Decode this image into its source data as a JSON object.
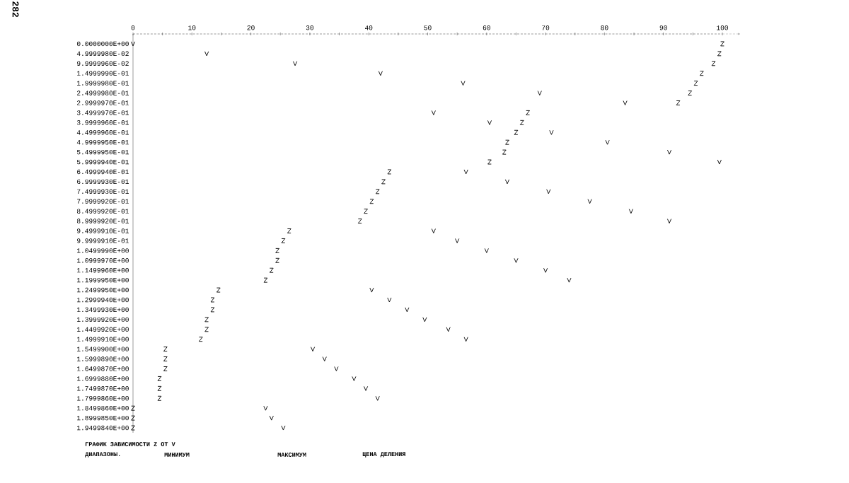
{
  "chart_data": {
    "type": "scatter",
    "orientation": "horizontal",
    "title": "ГРАФИК ЗАВИСИМОСТИ Z ОТ V",
    "annotations": [
      "282",
      "ДИАПАЗОНЫ.",
      "МИНИМУМ",
      "МАКСИМУМ",
      "ЦЕНА ДЕЛЕНИЯ"
    ],
    "categories": [
      "0.0000000E+00",
      "4.9999980E-02",
      "9.9999960E-02",
      "1.4999990E-01",
      "1.9999980E-01",
      "2.4999980E-01",
      "2.9999970E-01",
      "3.4999970E-01",
      "3.9999960E-01",
      "4.4999960E-01",
      "4.9999950E-01",
      "5.4999950E-01",
      "5.9999940E-01",
      "6.4999940E-01",
      "6.9999930E-01",
      "7.4999930E-01",
      "7.9999920E-01",
      "8.4999920E-01",
      "8.9999920E-01",
      "9.4999910E-01",
      "9.9999910E-01",
      "1.0499990E+00",
      "1.0999970E+00",
      "1.1499960E+00",
      "1.1999950E+00",
      "1.2499950E+00",
      "1.2999940E+00",
      "1.3499930E+00",
      "1.3999920E+00",
      "1.4499920E+00",
      "1.4999910E+00",
      "1.5499900E+00",
      "1.5999890E+00",
      "1.6499870E+00",
      "1.6999880E+00",
      "1.7499870E+00",
      "1.7999860E+00",
      "1.8499860E+00",
      "1.8999850E+00",
      "1.9499840E+00"
    ],
    "series": [
      {
        "color": "#000000",
        "values": [
          100,
          99.5,
          98.5,
          96.5,
          95.5,
          94.5,
          92.5,
          67,
          66,
          65,
          63.5,
          63,
          60.5,
          43.5,
          42.5,
          41.5,
          40.5,
          39.5,
          38.5,
          26.5,
          25.5,
          24.5,
          24.5,
          23.5,
          22.5,
          14.5,
          13.5,
          13.5,
          12.5,
          12.5,
          11.5,
          5.5,
          5.5,
          5.5,
          4.5,
          4.5,
          4.5,
          0,
          0,
          0
        ]
      },
      {
        "color": "#000000",
        "values": [
          0,
          12.5,
          27.5,
          42,
          56,
          69,
          83.5,
          51,
          60.5,
          71,
          80.5,
          91,
          99.5,
          56.5,
          63.5,
          70.5,
          77.5,
          84.5,
          91,
          51,
          55,
          60,
          65,
          70,
          74,
          40.5,
          43.5,
          46.5,
          49.5,
          53.5,
          56.5,
          30.5,
          32.5,
          34.5,
          37.5,
          39.5,
          41.5,
          22.5,
          23.5,
          25.5
        ]
      }
    ],
    "xlim": [
      0,
      100
    ],
    "xticks": [
      0,
      {
        "value": 5,
        "label": null
      },
      10,
      {
        "value": 15,
        "label": null
      },
      20,
      {
        "value": 25,
        "label": null
      },
      30,
      {
        "value": 35,
        "label": null
      },
      40,
      {
        "value": 45,
        "label": null
      },
      50,
      {
        "value": 55,
        "label": null
      },
      60,
      {
        "value": 65,
        "label": null
      },
      70,
      {
        "value": 75,
        "label": null
      },
      80,
      {
        "value": 85,
        "label": null
      },
      90,
      {
        "value": 95,
        "label": null
      },
      100
    ]
  }
}
